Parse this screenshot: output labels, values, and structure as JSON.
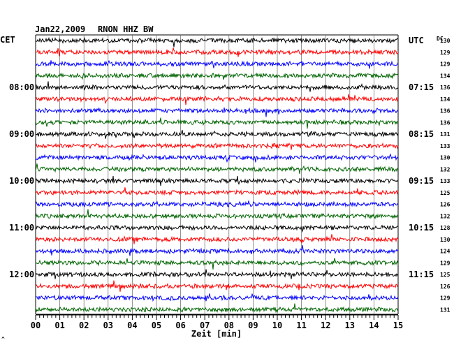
{
  "header": {
    "date": "Jan22,2009",
    "station": "RNON HHZ BW",
    "left_tz": "CET",
    "right_tz": "UTC",
    "dc_label": "DC"
  },
  "chart_data": {
    "type": "line",
    "xlabel": "Zeit [min]",
    "xlim": [
      0,
      15
    ],
    "x_ticks": [
      "00",
      "01",
      "02",
      "03",
      "04",
      "05",
      "06",
      "07",
      "08",
      "09",
      "10",
      "11",
      "12",
      "13",
      "14",
      "15"
    ],
    "trace_colors": [
      "#000000",
      "#ff0000",
      "#0000ff",
      "#006400"
    ],
    "dc_offsets": [
      130,
      129,
      129,
      134,
      136,
      134,
      136,
      136,
      131,
      133,
      130,
      132,
      133,
      125,
      126,
      132,
      128,
      130,
      124,
      129,
      125,
      126,
      129,
      131
    ],
    "left_hour_labels": [
      {
        "row": 4,
        "label": "08:00"
      },
      {
        "row": 8,
        "label": "09:00"
      },
      {
        "row": 12,
        "label": "10:00"
      },
      {
        "row": 16,
        "label": "11:00"
      },
      {
        "row": 20,
        "label": "12:00"
      }
    ],
    "right_hour_labels": [
      {
        "row": 0,
        "label": "UTC"
      },
      {
        "row": 4,
        "label": "07:15"
      },
      {
        "row": 8,
        "label": "08:15"
      },
      {
        "row": 12,
        "label": "09:15"
      },
      {
        "row": 16,
        "label": "10:15"
      },
      {
        "row": 20,
        "label": "11:15"
      }
    ],
    "grid": true
  },
  "corner_mark": "^"
}
